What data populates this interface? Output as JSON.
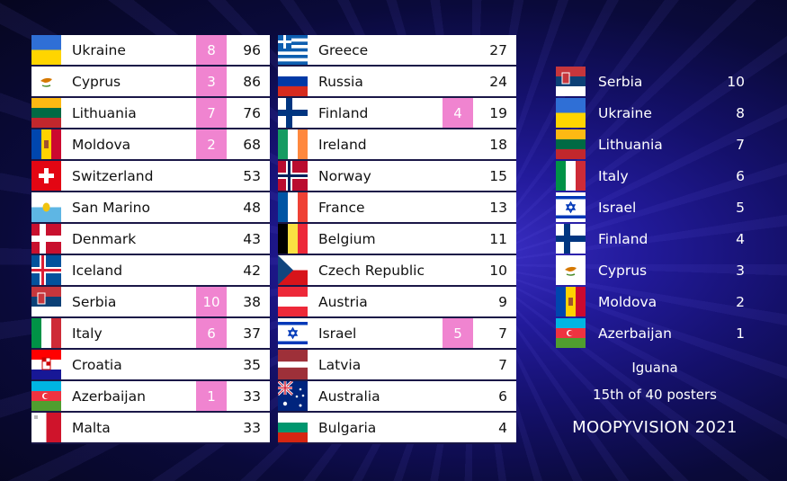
{
  "left_column": [
    {
      "country": "Ukraine",
      "flag": "ukraine-flag",
      "points": "8",
      "total": "96"
    },
    {
      "country": "Cyprus",
      "flag": "cyprus-flag",
      "points": "3",
      "total": "86"
    },
    {
      "country": "Lithuania",
      "flag": "lithuania-flag",
      "points": "7",
      "total": "76"
    },
    {
      "country": "Moldova",
      "flag": "moldova-flag",
      "points": "2",
      "total": "68"
    },
    {
      "country": "Switzerland",
      "flag": "switzerland-flag",
      "points": "",
      "total": "53"
    },
    {
      "country": "San Marino",
      "flag": "san-marino-flag",
      "points": "",
      "total": "48"
    },
    {
      "country": "Denmark",
      "flag": "denmark-flag",
      "points": "",
      "total": "43"
    },
    {
      "country": "Iceland",
      "flag": "iceland-flag",
      "points": "",
      "total": "42"
    },
    {
      "country": "Serbia",
      "flag": "serbia-flag",
      "points": "10",
      "total": "38"
    },
    {
      "country": "Italy",
      "flag": "italy-flag",
      "points": "6",
      "total": "37"
    },
    {
      "country": "Croatia",
      "flag": "croatia-flag",
      "points": "",
      "total": "35"
    },
    {
      "country": "Azerbaijan",
      "flag": "azerbaijan-flag",
      "points": "1",
      "total": "33"
    },
    {
      "country": "Malta",
      "flag": "malta-flag",
      "points": "",
      "total": "33"
    }
  ],
  "middle_column": [
    {
      "country": "Greece",
      "flag": "greece-flag",
      "points": "",
      "total": "27"
    },
    {
      "country": "Russia",
      "flag": "russia-flag",
      "points": "",
      "total": "24"
    },
    {
      "country": "Finland",
      "flag": "finland-flag",
      "points": "4",
      "total": "19"
    },
    {
      "country": "Ireland",
      "flag": "ireland-flag",
      "points": "",
      "total": "18"
    },
    {
      "country": "Norway",
      "flag": "norway-flag",
      "points": "",
      "total": "15"
    },
    {
      "country": "France",
      "flag": "france-flag",
      "points": "",
      "total": "13"
    },
    {
      "country": "Belgium",
      "flag": "belgium-flag",
      "points": "",
      "total": "11"
    },
    {
      "country": "Czech Republic",
      "flag": "czech-flag",
      "points": "",
      "total": "10"
    },
    {
      "country": "Austria",
      "flag": "austria-flag",
      "points": "",
      "total": "9"
    },
    {
      "country": "Israel",
      "flag": "israel-flag",
      "points": "5",
      "total": "7"
    },
    {
      "country": "Latvia",
      "flag": "latvia-flag",
      "points": "",
      "total": "7"
    },
    {
      "country": "Australia",
      "flag": "australia-flag",
      "points": "",
      "total": "6"
    },
    {
      "country": "Bulgaria",
      "flag": "bulgaria-flag",
      "points": "",
      "total": "4"
    }
  ],
  "votes_given": [
    {
      "country": "Serbia",
      "flag": "serbia-flag",
      "points": "10"
    },
    {
      "country": "Ukraine",
      "flag": "ukraine-flag",
      "points": "8"
    },
    {
      "country": "Lithuania",
      "flag": "lithuania-flag",
      "points": "7"
    },
    {
      "country": "Italy",
      "flag": "italy-flag",
      "points": "6"
    },
    {
      "country": "Israel",
      "flag": "israel-flag",
      "points": "5"
    },
    {
      "country": "Finland",
      "flag": "finland-flag",
      "points": "4"
    },
    {
      "country": "Cyprus",
      "flag": "cyprus-flag",
      "points": "3"
    },
    {
      "country": "Moldova",
      "flag": "moldova-flag",
      "points": "2"
    },
    {
      "country": "Azerbaijan",
      "flag": "azerbaijan-flag",
      "points": "1"
    }
  ],
  "voter": {
    "name": "Iguana",
    "rank": "15th of 40 posters",
    "show_title": "MOOPYVISION 2021"
  },
  "colors": {
    "points_badge": "#f084d0",
    "row_background": "#ffffff",
    "background": "#14106a"
  }
}
